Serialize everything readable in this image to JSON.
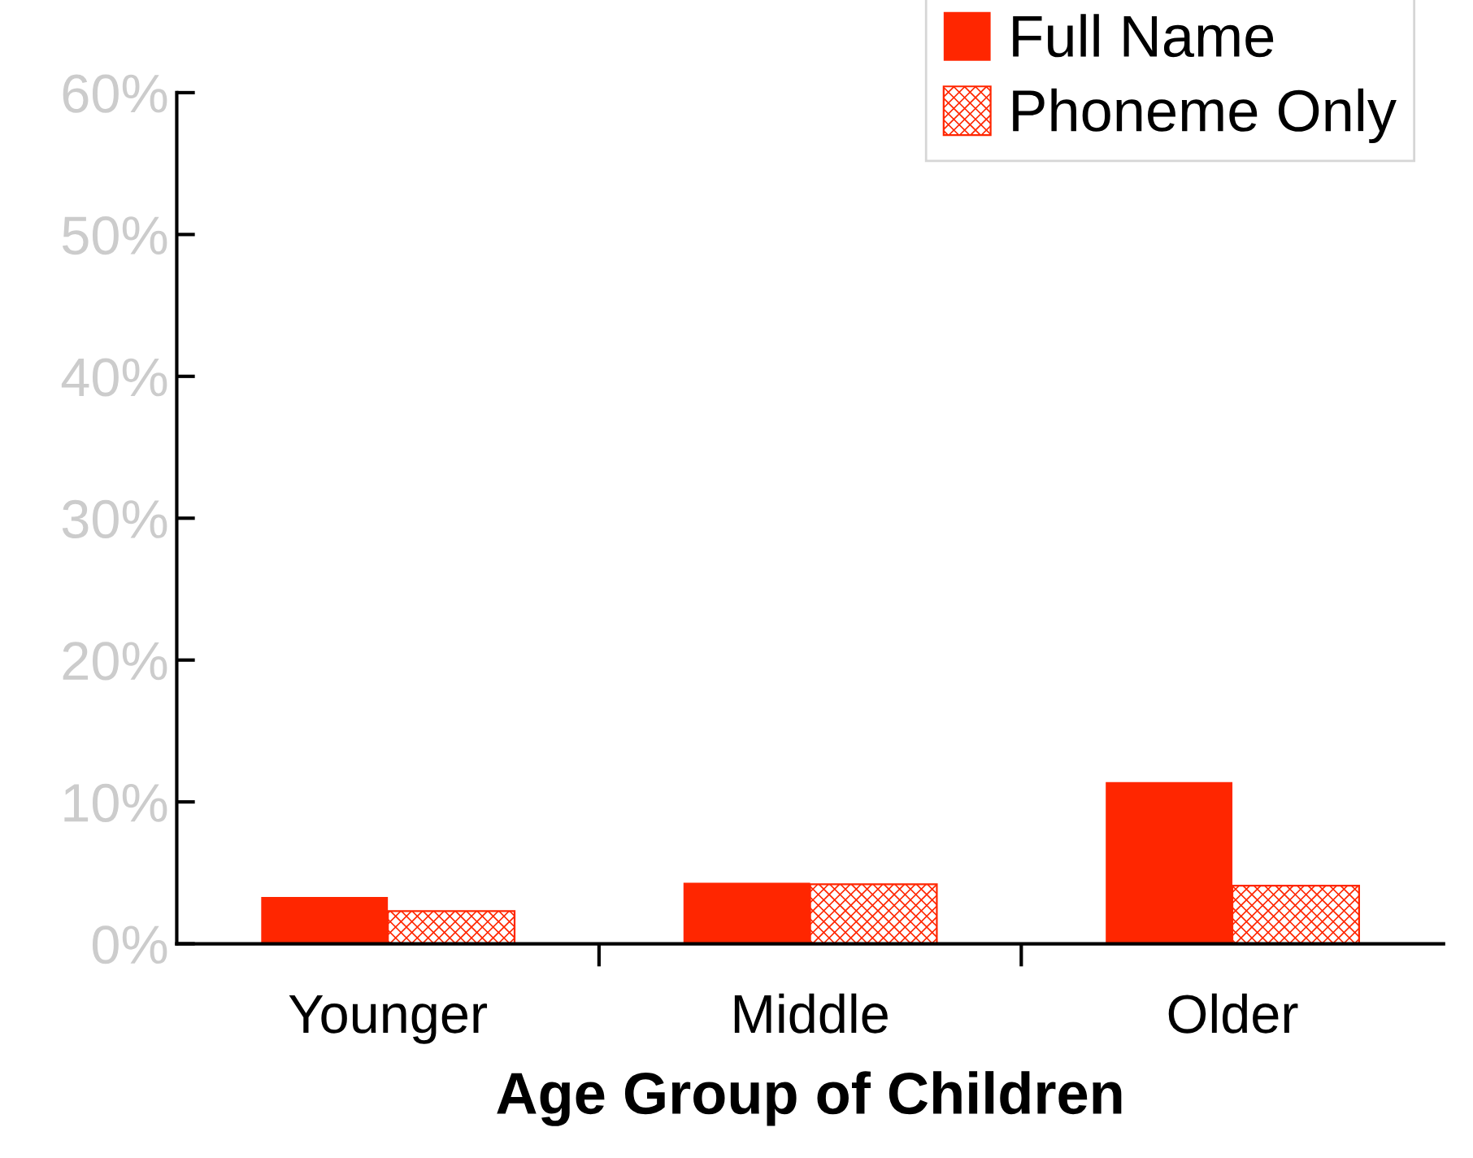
{
  "chart_data": {
    "type": "bar",
    "xlabel": "Age Group of Children",
    "categories": [
      "Younger",
      "Middle",
      "Older"
    ],
    "series": [
      {
        "name": "Full Name",
        "color": "#ff2600",
        "values": [
          3.3,
          4.3,
          11.4
        ]
      },
      {
        "name": "Phoneme Only",
        "color": "#ff2600",
        "values": [
          2.3,
          4.2,
          4.1
        ]
      }
    ],
    "ylim": [
      0,
      60
    ],
    "yticks": [
      {
        "value": 0,
        "label": "0%"
      },
      {
        "value": 10,
        "label": "10%"
      },
      {
        "value": 20,
        "label": "20%"
      },
      {
        "value": 30,
        "label": "30%"
      },
      {
        "value": 40,
        "label": "40%"
      },
      {
        "value": 50,
        "label": "50%"
      },
      {
        "value": 60,
        "label": "60%"
      }
    ],
    "grid": false,
    "legend": "top right"
  }
}
